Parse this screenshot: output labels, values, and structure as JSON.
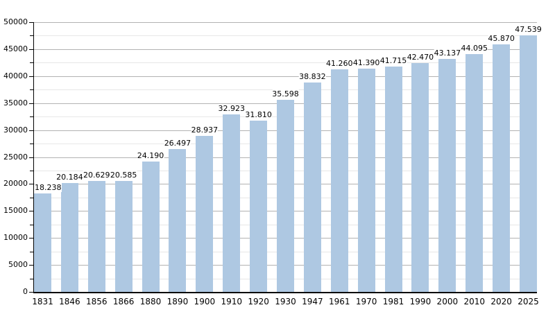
{
  "chart_data": {
    "type": "bar",
    "title": "",
    "xlabel": "",
    "ylabel": "",
    "categories": [
      "1831",
      "1846",
      "1856",
      "1866",
      "1880",
      "1890",
      "1900",
      "1910",
      "1920",
      "1930",
      "1947",
      "1961",
      "1970",
      "1981",
      "1990",
      "2000",
      "2010",
      "2020",
      "2025"
    ],
    "values": [
      18238,
      20184,
      20629,
      20585,
      24190,
      26497,
      28937,
      32923,
      31810,
      35598,
      38832,
      41260,
      41390,
      41715,
      42470,
      43137,
      44095,
      45870,
      47539
    ],
    "value_labels": [
      "18.238",
      "20.184",
      "20.629",
      "20.585",
      "24.190",
      "26.497",
      "28.937",
      "32.923",
      "31.810",
      "35.598",
      "38.832",
      "41.260",
      "41.390",
      "41.715",
      "42.470",
      "43.137",
      "44.095",
      "45.870",
      "47.539"
    ],
    "ylim": [
      0,
      50000
    ],
    "y_major_step": 5000,
    "y_minor_step": 2500,
    "y_tick_labels": [
      "0",
      "5000",
      "10000",
      "15000",
      "20000",
      "25000",
      "30000",
      "35000",
      "40000",
      "45000",
      "50000"
    ],
    "grid": "major and minor horizontal gridlines",
    "legend_position": "none",
    "colors": {
      "bar_fill": "#aec8e2",
      "major_gridline": "#b2b2b2",
      "minor_gridline": "#e7e7e7",
      "axis": "#000000",
      "text": "#000000",
      "background": "#ffffff"
    }
  }
}
